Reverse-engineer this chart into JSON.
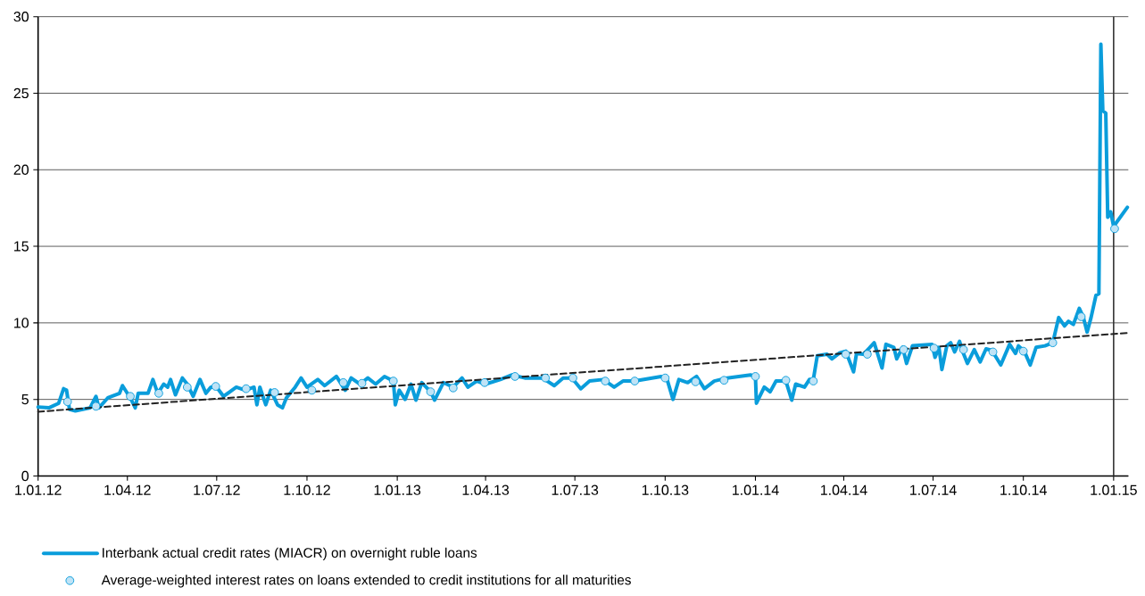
{
  "chart_data": {
    "type": "line",
    "xlim": [
      "2012-01-01",
      "2015-01-16"
    ],
    "xticks": [
      {
        "value": "2012-01-01",
        "label": "1.01.12"
      },
      {
        "value": "2012-04-01",
        "label": "1.04.12"
      },
      {
        "value": "2012-07-01",
        "label": "1.07.12"
      },
      {
        "value": "2012-10-01",
        "label": "1.10.12"
      },
      {
        "value": "2013-01-01",
        "label": "1.01.13"
      },
      {
        "value": "2013-04-01",
        "label": "1.04.13"
      },
      {
        "value": "2013-07-01",
        "label": "1.07.13"
      },
      {
        "value": "2013-10-01",
        "label": "1.10.13"
      },
      {
        "value": "2014-01-01",
        "label": "1.01.14"
      },
      {
        "value": "2014-04-01",
        "label": "1.04.14"
      },
      {
        "value": "2014-07-01",
        "label": "1.07.14"
      },
      {
        "value": "2014-10-01",
        "label": "1.10.14"
      },
      {
        "value": "2015-01-01",
        "label": "1.01.15"
      }
    ],
    "ylim": [
      0,
      30
    ],
    "yticks": [
      0,
      5,
      10,
      15,
      20,
      25,
      30
    ],
    "grid": "y",
    "legend": "bottom",
    "ref_lines": [
      {
        "axis": "x",
        "value": "2015-01-01",
        "color": "#333333"
      }
    ],
    "series": [
      {
        "name": "Interbank actual credit rates (MIACR) on overnight ruble loans",
        "color": "#0a9ddb",
        "marker": "none",
        "x": [
          "2012-01-01",
          "2012-01-12",
          "2012-01-22",
          "2012-01-27",
          "2012-01-30",
          "2012-02-02",
          "2012-02-08",
          "2012-02-23",
          "2012-02-29",
          "2012-03-03",
          "2012-03-12",
          "2012-03-24",
          "2012-03-27",
          "2012-04-04",
          "2012-04-09",
          "2012-04-12",
          "2012-04-22",
          "2012-04-27",
          "2012-05-02",
          "2012-05-08",
          "2012-05-12",
          "2012-05-15",
          "2012-05-20",
          "2012-05-27",
          "2012-06-01",
          "2012-06-07",
          "2012-06-14",
          "2012-06-20",
          "2012-06-25",
          "2012-07-01",
          "2012-07-08",
          "2012-07-21",
          "2012-07-30",
          "2012-08-08",
          "2012-08-11",
          "2012-08-14",
          "2012-08-20",
          "2012-08-25",
          "2012-09-01",
          "2012-09-06",
          "2012-09-10",
          "2012-09-19",
          "2012-09-25",
          "2012-10-01",
          "2012-10-12",
          "2012-10-19",
          "2012-10-31",
          "2012-11-09",
          "2012-11-15",
          "2012-11-24",
          "2012-12-02",
          "2012-12-10",
          "2012-12-19",
          "2012-12-28",
          "2012-12-30",
          "2013-01-03",
          "2013-01-09",
          "2013-01-15",
          "2013-01-20",
          "2013-01-26",
          "2013-02-04",
          "2013-02-08",
          "2013-02-17",
          "2013-02-27",
          "2013-03-08",
          "2013-03-14",
          "2013-03-23",
          "2013-04-01",
          "2013-04-16",
          "2013-04-28",
          "2013-05-11",
          "2013-05-29",
          "2013-06-10",
          "2013-06-19",
          "2013-06-28",
          "2013-07-07",
          "2013-07-16",
          "2013-07-30",
          "2013-08-10",
          "2013-08-19",
          "2013-08-31",
          "2013-09-27",
          "2013-10-03",
          "2013-10-09",
          "2013-10-15",
          "2013-10-24",
          "2013-11-02",
          "2013-11-10",
          "2013-11-20",
          "2013-12-03",
          "2013-12-27",
          "2014-01-01",
          "2014-01-02",
          "2014-01-10",
          "2014-01-16",
          "2014-01-22",
          "2014-02-01",
          "2014-02-07",
          "2014-02-11",
          "2014-02-20",
          "2014-02-25",
          "2014-03-01",
          "2014-03-05",
          "2014-03-15",
          "2014-03-20",
          "2014-03-28",
          "2014-04-03",
          "2014-04-11",
          "2014-04-14",
          "2014-04-21",
          "2014-04-27",
          "2014-05-02",
          "2014-05-10",
          "2014-05-14",
          "2014-05-22",
          "2014-05-25",
          "2014-05-31",
          "2014-06-04",
          "2014-06-10",
          "2014-06-30",
          "2014-07-03",
          "2014-07-07",
          "2014-07-10",
          "2014-07-15",
          "2014-07-19",
          "2014-07-23",
          "2014-07-28",
          "2014-07-31",
          "2014-08-05",
          "2014-08-12",
          "2014-08-18",
          "2014-08-24",
          "2014-08-30",
          "2014-09-08",
          "2014-09-17",
          "2014-09-23",
          "2014-09-26",
          "2014-10-02",
          "2014-10-08",
          "2014-10-14",
          "2014-10-23",
          "2014-10-31",
          "2014-11-06",
          "2014-11-12",
          "2014-11-16",
          "2014-11-21",
          "2014-11-27",
          "2014-12-01",
          "2014-12-05",
          "2014-12-09",
          "2014-12-14",
          "2014-12-17",
          "2014-12-19",
          "2014-12-21",
          "2014-12-24",
          "2014-12-26",
          "2014-12-29",
          "2015-01-01",
          "2015-01-15"
        ],
        "values": [
          4.5,
          4.45,
          4.75,
          5.7,
          5.6,
          4.35,
          4.25,
          4.45,
          5.2,
          4.45,
          5.1,
          5.4,
          5.9,
          5.1,
          4.45,
          5.4,
          5.4,
          6.3,
          5.4,
          6.0,
          5.8,
          6.3,
          5.3,
          6.4,
          6.0,
          5.2,
          6.3,
          5.4,
          5.8,
          5.8,
          5.2,
          5.8,
          5.6,
          5.8,
          4.65,
          5.8,
          4.65,
          5.6,
          4.65,
          4.45,
          5.1,
          5.8,
          6.4,
          5.8,
          6.3,
          5.9,
          6.5,
          5.6,
          6.4,
          6.0,
          6.4,
          6.0,
          6.5,
          6.2,
          4.65,
          5.6,
          5.0,
          6.0,
          4.95,
          6.1,
          5.5,
          4.95,
          6.1,
          5.8,
          6.4,
          5.8,
          6.2,
          6.0,
          6.3,
          6.6,
          6.4,
          6.4,
          5.9,
          6.4,
          6.4,
          5.7,
          6.2,
          6.3,
          5.8,
          6.2,
          6.2,
          6.5,
          6.3,
          5.0,
          6.3,
          6.1,
          6.5,
          5.7,
          6.2,
          6.4,
          6.6,
          6.5,
          4.75,
          5.8,
          5.5,
          6.2,
          6.2,
          4.95,
          6.0,
          5.8,
          6.3,
          6.3,
          7.85,
          7.95,
          7.65,
          8.05,
          8.15,
          6.8,
          8.0,
          7.95,
          8.35,
          8.7,
          7.05,
          8.6,
          8.4,
          7.65,
          8.4,
          7.35,
          8.5,
          8.6,
          7.75,
          8.4,
          6.95,
          8.5,
          8.7,
          8.1,
          8.8,
          8.15,
          7.35,
          8.25,
          7.45,
          8.3,
          8.2,
          7.25,
          8.6,
          8.0,
          8.5,
          8.15,
          7.25,
          8.4,
          8.5,
          8.7,
          10.35,
          9.8,
          10.1,
          9.9,
          10.95,
          10.4,
          9.4,
          10.35,
          11.8,
          11.9,
          28.2,
          23.85,
          23.7,
          16.9,
          17.25,
          16.3,
          17.55
        ]
      },
      {
        "type": "scatter",
        "name": "Average-weighted interest rates on loans extended to credit institutions for all maturities",
        "color": "#bfe3f6",
        "marker": "circle",
        "x": [
          "2012-01-31",
          "2012-02-29",
          "2012-04-04",
          "2012-05-03",
          "2012-06-01",
          "2012-06-30",
          "2012-07-31",
          "2012-08-29",
          "2012-10-06",
          "2012-11-07",
          "2012-11-26",
          "2012-12-28",
          "2013-02-04",
          "2013-02-27",
          "2013-03-31",
          "2013-05-01",
          "2013-06-01",
          "2013-06-29",
          "2013-08-01",
          "2013-08-31",
          "2013-10-01",
          "2013-11-01",
          "2013-11-30",
          "2014-01-01",
          "2014-02-01",
          "2014-03-01",
          "2014-04-03",
          "2014-04-25",
          "2014-06-01",
          "2014-07-02",
          "2014-08-01",
          "2014-08-31",
          "2014-10-01",
          "2014-10-31",
          "2014-11-29",
          "2015-01-02"
        ],
        "values": [
          4.85,
          4.55,
          5.2,
          5.4,
          5.8,
          5.85,
          5.7,
          5.45,
          5.6,
          6.1,
          6.05,
          6.2,
          5.5,
          5.75,
          6.1,
          6.5,
          6.4,
          6.4,
          6.2,
          6.2,
          6.4,
          6.15,
          6.25,
          6.5,
          6.25,
          6.2,
          7.95,
          7.95,
          8.25,
          8.35,
          8.25,
          8.1,
          8.15,
          8.7,
          10.4,
          16.15
        ]
      },
      {
        "type": "line",
        "color": "#222222",
        "line_style": "dashed",
        "marker": "none",
        "x": [
          "2012-01-01",
          "2015-01-16"
        ],
        "values": [
          4.2,
          9.35
        ]
      }
    ]
  }
}
